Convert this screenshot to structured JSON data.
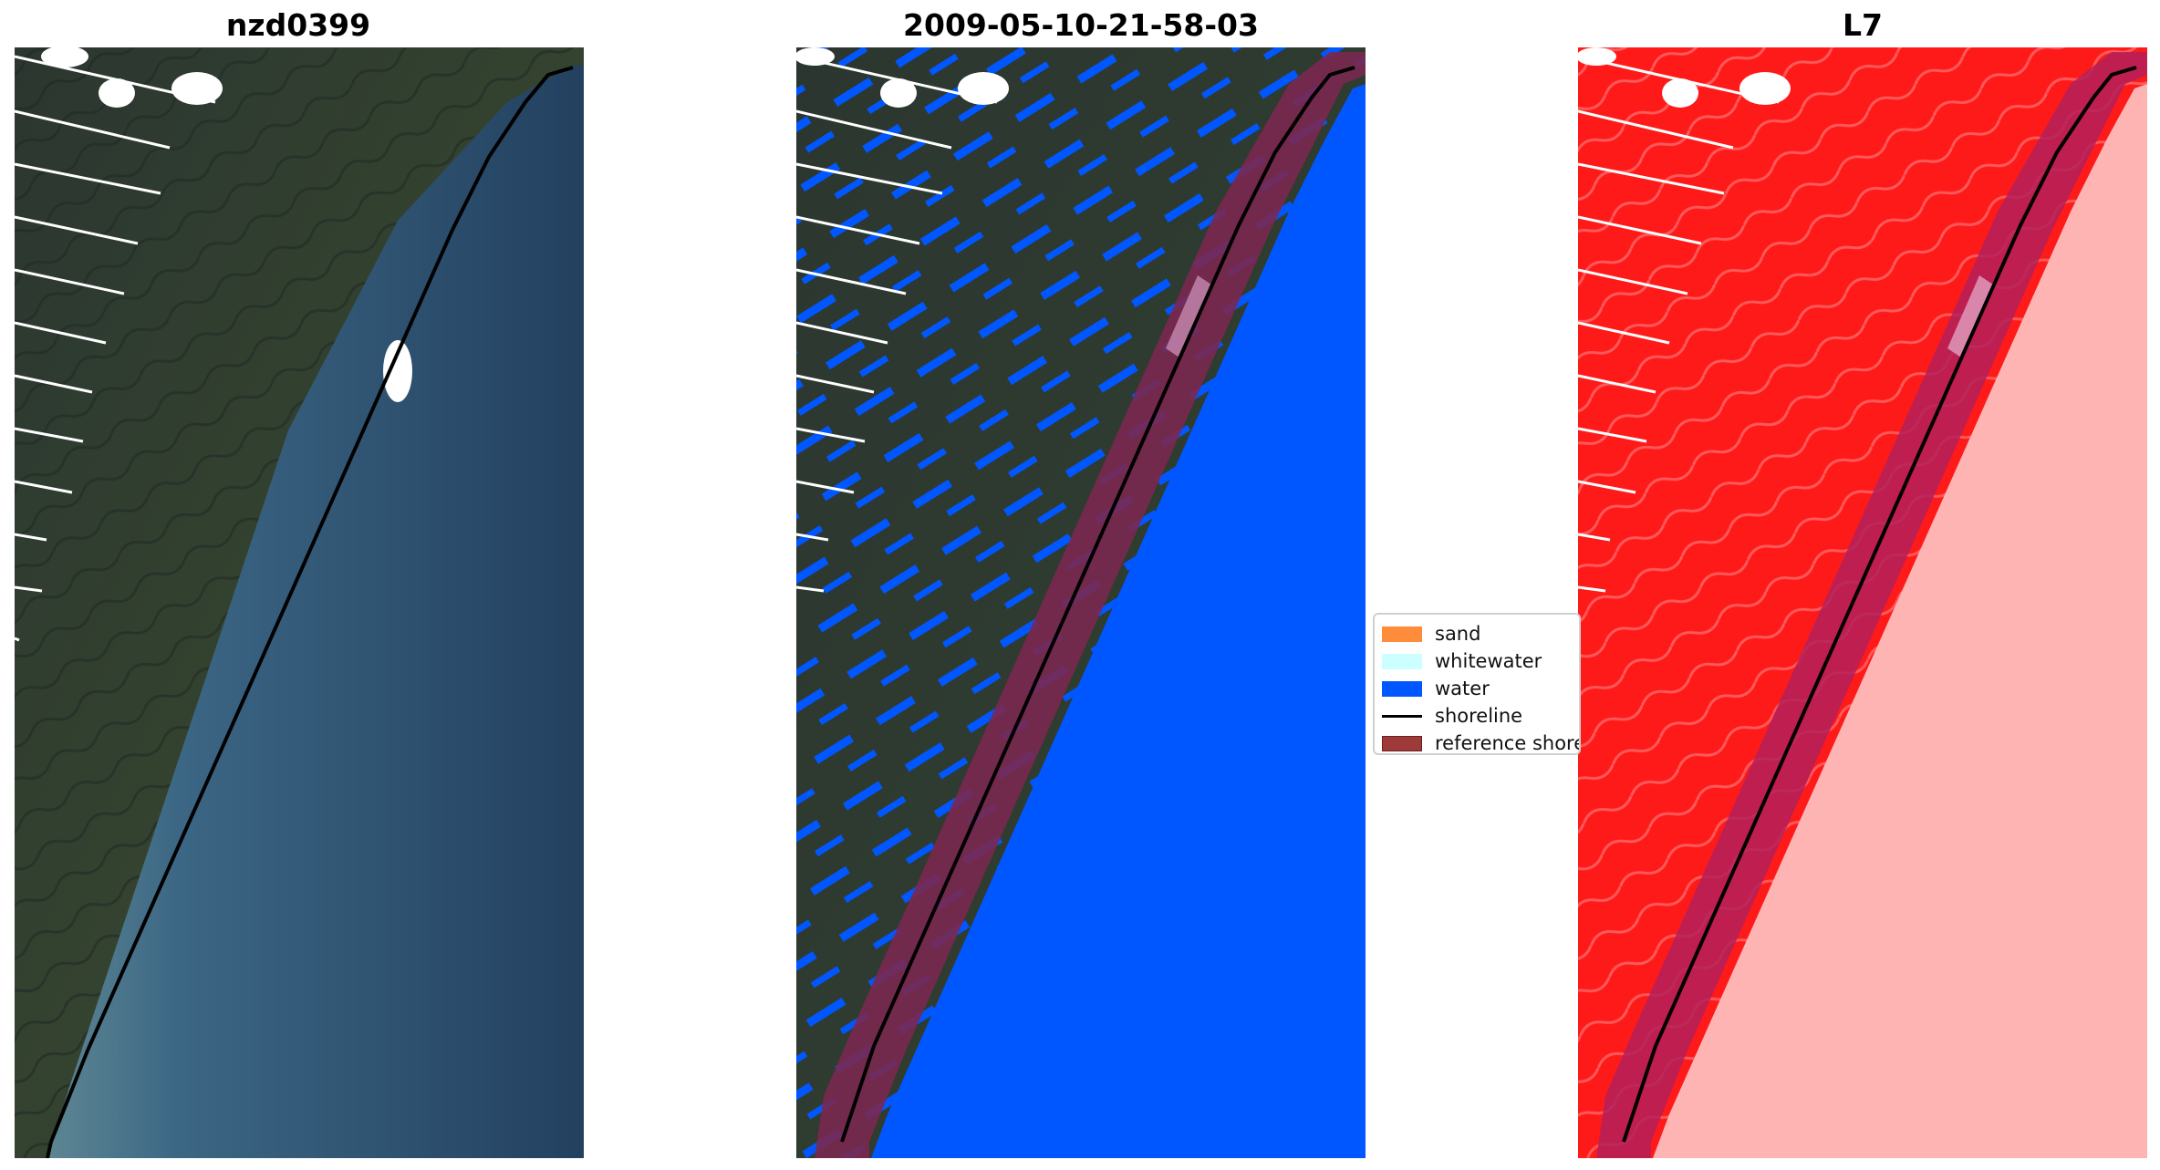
{
  "panels": [
    {
      "title": "nzd0399"
    },
    {
      "title": "2009-05-10-21-58-03"
    },
    {
      "title": "L7"
    }
  ],
  "legend": {
    "items": [
      {
        "label": "sand",
        "color": "#ff8c3a"
      },
      {
        "label": "whitewater",
        "color": "#ccffff"
      },
      {
        "label": "water",
        "color": "#0057ff"
      },
      {
        "label": "shoreline",
        "color": "#000000"
      },
      {
        "label": "reference shoreline",
        "color": "#9e3a3a"
      }
    ]
  },
  "colors": {
    "land_rgb": "#2f3c2f",
    "sea_rgb": "#2b4a6e",
    "land_L7": "#ff1a1a",
    "sea_L7": "#ffb4b4",
    "reference_buffer": "#7a2850"
  }
}
